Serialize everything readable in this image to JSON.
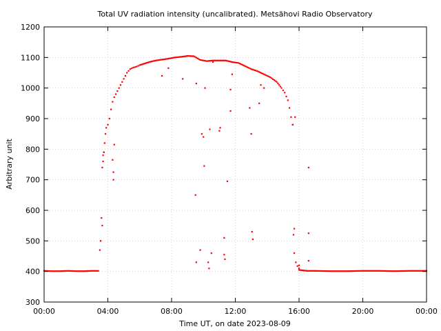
{
  "chart_data": {
    "type": "scatter",
    "title": "Total UV radiation intensity (uncalibrated). Metsähovi Radio Observatory",
    "xlabel": "Time UT, on date 2023-08-09",
    "ylabel": "Arbitrary unit",
    "xlim": [
      0,
      24
    ],
    "ylim": [
      300,
      1200
    ],
    "x_ticks": [
      {
        "value": 0,
        "label": "00:00"
      },
      {
        "value": 4,
        "label": "04:00"
      },
      {
        "value": 8,
        "label": "08:00"
      },
      {
        "value": 12,
        "label": "12:00"
      },
      {
        "value": 16,
        "label": "16:00"
      },
      {
        "value": 20,
        "label": "20:00"
      },
      {
        "value": 24,
        "label": "00:00"
      }
    ],
    "y_ticks": [
      300,
      400,
      500,
      600,
      700,
      800,
      900,
      1000,
      1100,
      1200
    ],
    "grid": true,
    "color": "#ff0000",
    "series": [
      {
        "x": [
          0,
          0.5,
          1,
          1.5,
          2,
          2.5,
          3,
          3.4,
          3.5,
          3.55,
          3.6,
          3.65,
          3.7,
          3.75,
          3.8,
          3.85,
          3.9,
          4.0,
          4.1,
          4.2,
          4.3,
          4.4,
          4.6,
          4.8,
          5.0,
          5.2,
          5.4,
          5.6,
          5.8,
          6.0,
          6.3,
          6.6,
          7.0,
          7.4,
          7.8,
          8.2,
          8.6,
          9.0,
          9.4,
          9.8,
          10.2,
          10.6,
          11.0,
          11.4,
          11.8,
          12.2,
          12.6,
          13.0,
          13.4,
          13.8,
          14.2,
          14.6,
          14.9,
          15.1,
          15.3,
          15.4,
          15.5,
          15.6,
          15.65,
          15.7,
          15.8,
          16.0,
          16.5,
          17,
          18,
          19,
          20,
          21,
          22,
          23,
          24,
          3.65,
          3.7,
          3.75,
          4.3,
          4.35,
          4.35,
          4.4,
          7.4,
          7.8,
          8.7,
          9.5,
          9.55,
          9.55,
          9.8,
          9.9,
          10.0,
          10.05,
          10.1,
          10.3,
          10.35,
          10.4,
          10.5,
          10.6,
          11.0,
          11.05,
          11.3,
          11.3,
          11.35,
          11.5,
          11.7,
          11.7,
          11.8,
          12.9,
          13.0,
          13.05,
          13.1,
          13.5,
          13.6,
          13.8,
          15.6,
          15.7,
          15.75,
          16.0,
          16.0,
          16.6,
          16.6,
          16.6
        ],
        "y": [
          402,
          401,
          401,
          402,
          401,
          401,
          402,
          402,
          470,
          500,
          575,
          740,
          780,
          790,
          820,
          850,
          870,
          880,
          900,
          930,
          955,
          970,
          990,
          1010,
          1030,
          1050,
          1062,
          1067,
          1070,
          1075,
          1080,
          1085,
          1090,
          1093,
          1096,
          1100,
          1102,
          1105,
          1104,
          1092,
          1088,
          1090,
          1090,
          1090,
          1085,
          1082,
          1072,
          1062,
          1055,
          1045,
          1035,
          1020,
          1000,
          985,
          960,
          935,
          905,
          880,
          520,
          460,
          430,
          405,
          402,
          402,
          401,
          401,
          402,
          402,
          401,
          402,
          402,
          550,
          760,
          790,
          765,
          725,
          700,
          815,
          1040,
          1065,
          1030,
          650,
          430,
          1015,
          470,
          850,
          840,
          745,
          1000,
          430,
          410,
          865,
          460,
          1085,
          860,
          870,
          510,
          455,
          440,
          695,
          925,
          995,
          1045,
          935,
          850,
          530,
          505,
          950,
          1010,
          1000,
          880,
          540,
          905,
          420,
          410,
          740,
          525,
          435
        ]
      }
    ]
  }
}
